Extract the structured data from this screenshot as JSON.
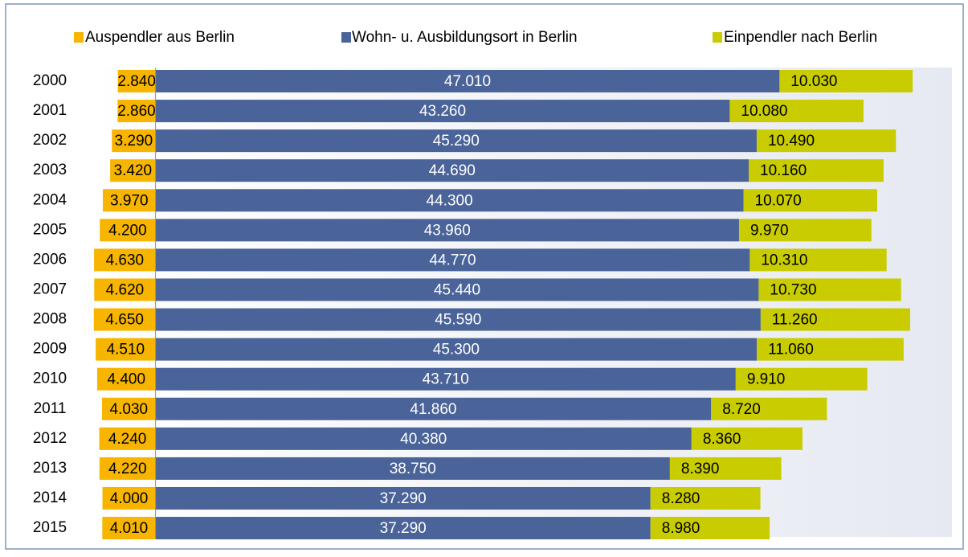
{
  "chart_data": {
    "type": "bar",
    "orientation": "horizontal",
    "stacked": true,
    "categories": [
      "2000",
      "2001",
      "2002",
      "2003",
      "2004",
      "2005",
      "2006",
      "2007",
      "2008",
      "2009",
      "2010",
      "2011",
      "2012",
      "2013",
      "2014",
      "2015"
    ],
    "series": [
      {
        "name": "Auspendler aus Berlin",
        "color": "#f7b500",
        "direction": "left",
        "values": [
          2840,
          2860,
          3290,
          3420,
          3970,
          4200,
          4630,
          4620,
          4650,
          4510,
          4400,
          4030,
          4240,
          4220,
          4000,
          4010
        ],
        "value_labels": [
          "2.840",
          "2.860",
          "3.290",
          "3.420",
          "3.970",
          "4.200",
          "4.630",
          "4.620",
          "4.650",
          "4.510",
          "4.400",
          "4.030",
          "4.240",
          "4.220",
          "4.000",
          "4.010"
        ]
      },
      {
        "name": "Wohn- u. Ausbildungsort in Berlin",
        "color": "#4a6399",
        "direction": "right",
        "values": [
          47010,
          43260,
          45290,
          44690,
          44300,
          43960,
          44770,
          45440,
          45590,
          45300,
          43710,
          41860,
          40380,
          38750,
          37290,
          37290
        ],
        "value_labels": [
          "47.010",
          "43.260",
          "45.290",
          "44.690",
          "44.300",
          "43.960",
          "44.770",
          "45.440",
          "45.590",
          "45.300",
          "43.710",
          "41.860",
          "40.380",
          "38.750",
          "37.290",
          "37.290"
        ]
      },
      {
        "name": "Einpendler nach Berlin",
        "color": "#c8cc00",
        "direction": "right",
        "values": [
          10030,
          10080,
          10490,
          10160,
          10070,
          9970,
          10310,
          10730,
          11260,
          11060,
          9910,
          8720,
          8360,
          8390,
          8280,
          8980
        ],
        "value_labels": [
          "10.030",
          "10.080",
          "10.490",
          "10.160",
          "10.070",
          "9.970",
          "10.310",
          "10.730",
          "11.260",
          "11.060",
          "9.910",
          "8.720",
          "8.360",
          "8.390",
          "8.280",
          "8.980"
        ]
      }
    ],
    "xlim": [
      -5000,
      60000
    ],
    "legend": "top"
  }
}
